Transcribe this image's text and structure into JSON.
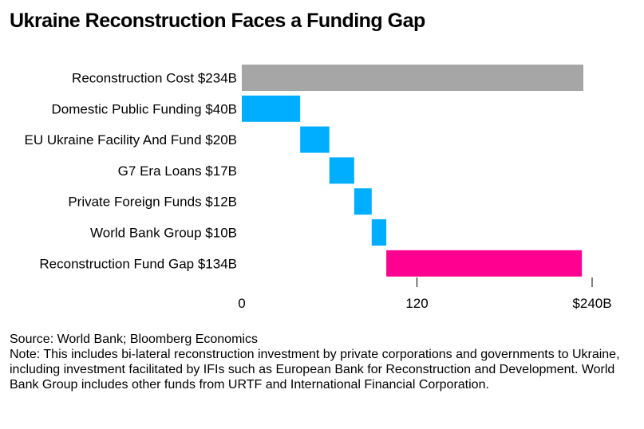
{
  "chart_data": {
    "type": "bar",
    "subtype": "waterfall-horizontal",
    "title": "Ukraine Reconstruction Faces a Funding Gap",
    "categories": [
      "Reconstruction Cost $234B",
      "Domestic Public Funding $40B",
      "EU Ukraine Facility And Fund $20B",
      "G7 Era Loans $17B",
      "Private Foreign Funds $12B",
      "World Bank Group $10B",
      "Reconstruction Fund Gap $134B"
    ],
    "values": [
      234,
      40,
      20,
      17,
      12,
      10,
      134
    ],
    "starts": [
      0,
      0,
      40,
      60,
      77,
      89,
      99
    ],
    "colors": [
      "#a6a6a6",
      "#00aeff",
      "#00aeff",
      "#00aeff",
      "#00aeff",
      "#00aeff",
      "#ff0090"
    ],
    "xlim": [
      0,
      240
    ],
    "ticks": [
      {
        "value": 0,
        "label": "0"
      },
      {
        "value": 120,
        "label": "120"
      },
      {
        "value": 240,
        "label": "$240B"
      }
    ],
    "grid": false,
    "xlabel": "",
    "ylabel": ""
  },
  "footer": {
    "source": "Source: World Bank; Bloomberg Economics",
    "note": "Note: This includes bi-lateral reconstruction investment by private corporations and governments to Ukraine, including investment facilitated by IFIs such as European Bank for Reconstruction and Development. World Bank Group includes other funds from URTF and International Financial Corporation."
  }
}
